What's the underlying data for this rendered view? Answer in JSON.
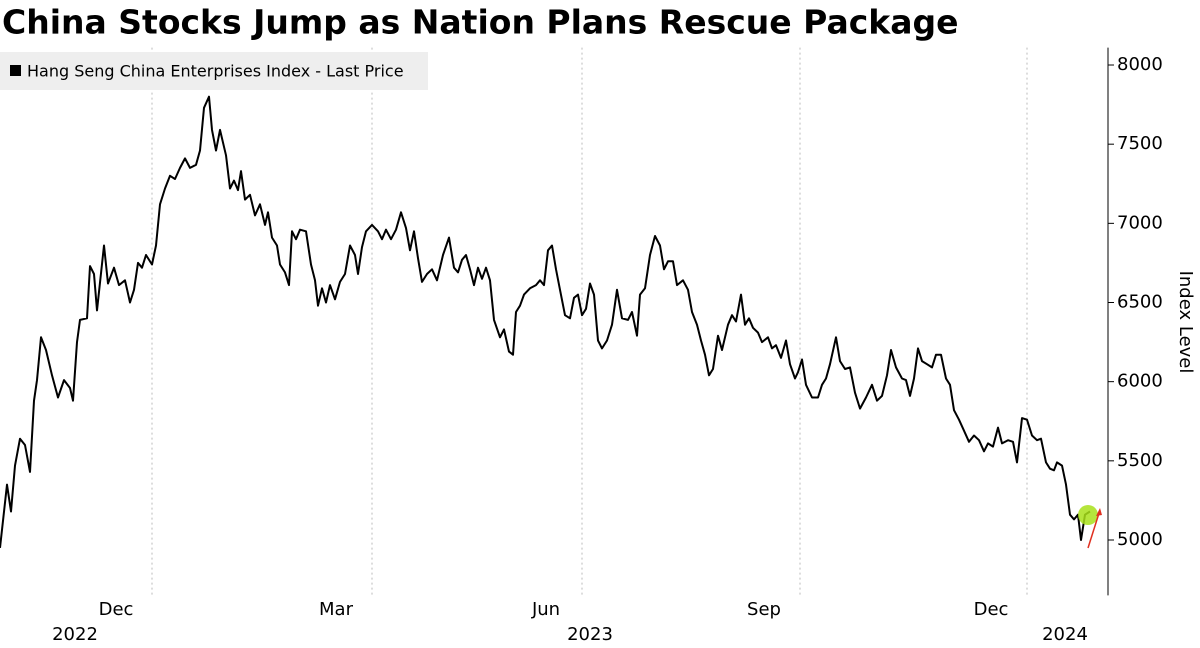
{
  "chart_data": {
    "type": "line",
    "title": "China Stocks Jump as Nation Plans Rescue Package",
    "y_label": "Index Level",
    "x": [
      0,
      7,
      11,
      15,
      20,
      25,
      30,
      34,
      37,
      41,
      46,
      52,
      58,
      64,
      70,
      73,
      77,
      80,
      87,
      90,
      94,
      97,
      104,
      108,
      114,
      119,
      125,
      130,
      134,
      138,
      142,
      146,
      152,
      156,
      160,
      165,
      170,
      175,
      180,
      185,
      190,
      196,
      200,
      204,
      209,
      212,
      216,
      220,
      226,
      230,
      234,
      238,
      241,
      245,
      250,
      255,
      260,
      265,
      268,
      272,
      277,
      280,
      285,
      289,
      292,
      296,
      300,
      306,
      311,
      315,
      318,
      322,
      326,
      330,
      335,
      340,
      345,
      350,
      355,
      358,
      362,
      366,
      372,
      378,
      382,
      386,
      391,
      396,
      401,
      406,
      410,
      414,
      418,
      422,
      427,
      432,
      437,
      443,
      449,
      454,
      458,
      462,
      466,
      470,
      474,
      478,
      482,
      486,
      490,
      494,
      500,
      504,
      509,
      513,
      516,
      520,
      524,
      530,
      536,
      540,
      544,
      548,
      552,
      556,
      560,
      565,
      570,
      574,
      578,
      582,
      586,
      590,
      594,
      598,
      602,
      607,
      612,
      617,
      622,
      628,
      632,
      637,
      640,
      645,
      650,
      655,
      660,
      664,
      668,
      673,
      677,
      683,
      688,
      692,
      697,
      701,
      705,
      709,
      713,
      718,
      722,
      728,
      732,
      736,
      741,
      745,
      749,
      753,
      758,
      762,
      768,
      772,
      776,
      781,
      786,
      790,
      795,
      798,
      802,
      806,
      812,
      818,
      822,
      826,
      830,
      836,
      840,
      845,
      850,
      855,
      860,
      866,
      872,
      877,
      882,
      887,
      891,
      896,
      902,
      906,
      910,
      914,
      918,
      922,
      927,
      932,
      936,
      941,
      946,
      950,
      954,
      959,
      964,
      969,
      974,
      979,
      984,
      988,
      993,
      998,
      1002,
      1008,
      1013,
      1017,
      1022,
      1027,
      1032,
      1037,
      1041,
      1046,
      1050,
      1054,
      1057,
      1062,
      1066,
      1070,
      1074,
      1078,
      1081,
      1085,
      1090
    ],
    "series": [
      {
        "name": "Hang Seng China Enterprises Index - Last Price",
        "color": "#000000",
        "values": [
          4950,
          5350,
          5180,
          5470,
          5640,
          5600,
          5430,
          5880,
          6010,
          6280,
          6200,
          6040,
          5900,
          6010,
          5960,
          5880,
          6250,
          6390,
          6400,
          6730,
          6680,
          6450,
          6860,
          6620,
          6720,
          6610,
          6640,
          6500,
          6580,
          6750,
          6720,
          6800,
          6740,
          6860,
          7120,
          7220,
          7300,
          7280,
          7350,
          7410,
          7350,
          7370,
          7460,
          7730,
          7800,
          7590,
          7460,
          7590,
          7430,
          7220,
          7270,
          7210,
          7330,
          7150,
          7180,
          7050,
          7120,
          6990,
          7070,
          6910,
          6860,
          6740,
          6690,
          6610,
          6950,
          6900,
          6960,
          6950,
          6740,
          6640,
          6480,
          6590,
          6500,
          6610,
          6520,
          6630,
          6680,
          6860,
          6800,
          6680,
          6850,
          6950,
          6990,
          6950,
          6900,
          6960,
          6900,
          6960,
          7070,
          6970,
          6830,
          6950,
          6780,
          6630,
          6680,
          6710,
          6640,
          6800,
          6910,
          6720,
          6690,
          6770,
          6800,
          6710,
          6610,
          6720,
          6650,
          6720,
          6640,
          6390,
          6280,
          6330,
          6190,
          6170,
          6440,
          6480,
          6550,
          6590,
          6610,
          6640,
          6610,
          6830,
          6860,
          6710,
          6580,
          6420,
          6400,
          6530,
          6550,
          6420,
          6460,
          6620,
          6550,
          6260,
          6210,
          6260,
          6360,
          6580,
          6400,
          6390,
          6440,
          6290,
          6550,
          6590,
          6800,
          6920,
          6860,
          6710,
          6760,
          6760,
          6610,
          6640,
          6580,
          6440,
          6360,
          6260,
          6170,
          6040,
          6080,
          6290,
          6200,
          6360,
          6420,
          6380,
          6550,
          6360,
          6400,
          6340,
          6310,
          6250,
          6280,
          6210,
          6230,
          6150,
          6260,
          6110,
          6020,
          6060,
          6140,
          5980,
          5900,
          5900,
          5980,
          6020,
          6110,
          6280,
          6130,
          6080,
          6090,
          5930,
          5830,
          5900,
          5980,
          5880,
          5910,
          6040,
          6200,
          6090,
          6020,
          6010,
          5910,
          6020,
          6210,
          6130,
          6110,
          6090,
          6170,
          6170,
          6020,
          5980,
          5820,
          5760,
          5690,
          5620,
          5660,
          5630,
          5560,
          5610,
          5590,
          5710,
          5610,
          5630,
          5620,
          5490,
          5770,
          5760,
          5660,
          5630,
          5640,
          5490,
          5450,
          5440,
          5490,
          5470,
          5350,
          5160,
          5130,
          5160,
          5000,
          5160,
          5180
        ]
      }
    ],
    "xlim": [
      0,
      1108
    ],
    "xticks": [
      {
        "value": 152,
        "label": "Dec"
      },
      {
        "value": 372,
        "label": "Mar"
      },
      {
        "value": 582,
        "label": "Jun"
      },
      {
        "value": 800,
        "label": "Sep"
      },
      {
        "value": 1027,
        "label": "Dec"
      }
    ],
    "x_year_labels": [
      {
        "value": 75,
        "label": "2022"
      },
      {
        "value": 590,
        "label": "2023"
      },
      {
        "value": 1065,
        "label": "2024"
      }
    ],
    "ylim": [
      4650,
      8110
    ],
    "yticks": [
      5000,
      5500,
      6000,
      6500,
      7000,
      7500,
      8000
    ],
    "y_axis_side": "right",
    "grid": true
  }
}
